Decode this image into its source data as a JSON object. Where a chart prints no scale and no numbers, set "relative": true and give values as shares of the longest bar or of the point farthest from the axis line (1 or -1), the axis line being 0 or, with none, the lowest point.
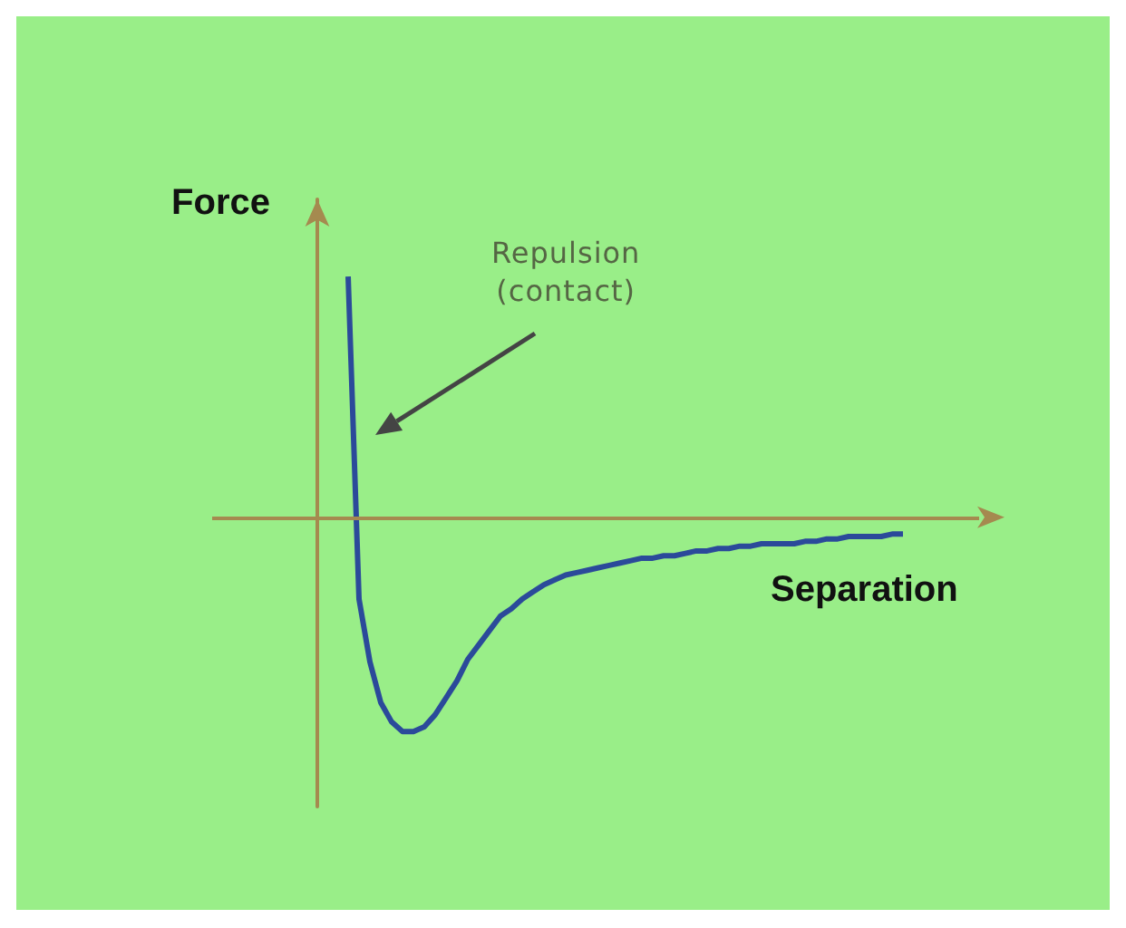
{
  "chart_data": {
    "type": "line",
    "relative": true,
    "xlabel": "Separation",
    "ylabel": "Force",
    "color": "#2b4a9a",
    "categories": [
      null,
      null,
      null,
      null,
      null,
      null,
      null,
      null,
      null,
      null,
      null,
      null,
      null,
      null,
      null,
      null,
      null,
      null,
      null,
      null,
      null,
      null,
      null,
      null,
      null,
      null,
      null,
      null,
      null,
      null,
      null,
      null,
      null,
      null,
      null,
      null,
      null,
      null,
      null,
      null,
      null,
      null,
      null,
      null,
      null,
      null,
      null,
      null,
      null,
      null,
      null,
      null
    ],
    "values": [
      1.0,
      -0.34,
      -0.6,
      -0.77,
      -0.85,
      -0.89,
      -0.89,
      -0.87,
      -0.82,
      -0.75,
      -0.68,
      -0.59,
      -0.53,
      -0.47,
      -0.41,
      -0.38,
      -0.34,
      -0.31,
      -0.28,
      -0.26,
      -0.24,
      -0.23,
      -0.22,
      -0.21,
      -0.2,
      -0.19,
      -0.18,
      -0.17,
      -0.17,
      -0.16,
      -0.16,
      -0.15,
      -0.14,
      -0.14,
      -0.13,
      -0.13,
      -0.12,
      -0.12,
      -0.11,
      -0.11,
      -0.11,
      -0.11,
      -0.1,
      -0.1,
      -0.09,
      -0.09,
      -0.08,
      -0.08,
      -0.08,
      -0.08,
      -0.07,
      -0.07
    ],
    "ref_lines": [
      {
        "axis": "y",
        "value": 0,
        "color": "#a58a4f"
      }
    ],
    "annotations": [
      "Repulsion\n(contact)"
    ]
  }
}
